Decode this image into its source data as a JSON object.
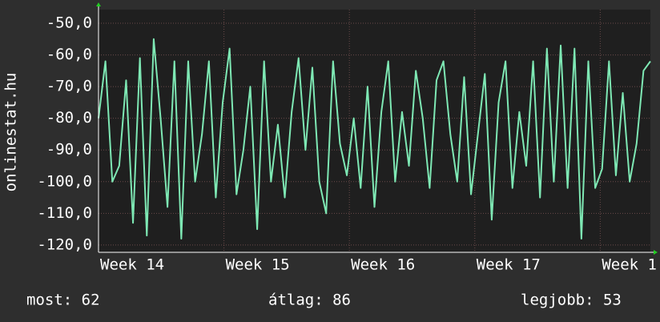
{
  "chart_data": {
    "type": "line",
    "y_label": "onlinestat.hu",
    "series": [
      {
        "name": "onlinestat.hu",
        "color": "#7ee8b4",
        "x": [
          14,
          14.055,
          14.11,
          14.165,
          14.22,
          14.275,
          14.33,
          14.385,
          14.44,
          14.495,
          14.55,
          14.605,
          14.66,
          14.715,
          14.77,
          14.825,
          14.88,
          14.935,
          14.99,
          15.045,
          15.1,
          15.155,
          15.21,
          15.265,
          15.32,
          15.375,
          15.43,
          15.485,
          15.54,
          15.595,
          15.65,
          15.705,
          15.76,
          15.815,
          15.87,
          15.925,
          15.98,
          16.035,
          16.09,
          16.145,
          16.2,
          16.255,
          16.31,
          16.365,
          16.42,
          16.475,
          16.53,
          16.585,
          16.64,
          16.695,
          16.75,
          16.805,
          16.86,
          16.915,
          16.97,
          17.025,
          17.08,
          17.135,
          17.19,
          17.245,
          17.3,
          17.355,
          17.41,
          17.465,
          17.52,
          17.575,
          17.63,
          17.685,
          17.74,
          17.795,
          17.85,
          17.905,
          17.96,
          18.015,
          18.07,
          18.125,
          18.18,
          18.235,
          18.29,
          18.345,
          18.4
        ],
        "values": [
          -80,
          -62,
          -100,
          -95,
          -68,
          -113,
          -61,
          -117,
          -55,
          -80,
          -108,
          -62,
          -118,
          -62,
          -100,
          -85,
          -62,
          -105,
          -75,
          -58,
          -104,
          -90,
          -70,
          -115,
          -62,
          -100,
          -82,
          -105,
          -78,
          -61,
          -90,
          -64,
          -100,
          -110,
          -62,
          -88,
          -98,
          -80,
          -102,
          -70,
          -108,
          -78,
          -62,
          -100,
          -78,
          -95,
          -65,
          -80,
          -102,
          -68,
          -62,
          -85,
          -100,
          -67,
          -104,
          -85,
          -66,
          -112,
          -75,
          -62,
          -102,
          -78,
          -95,
          -62,
          -105,
          -58,
          -100,
          -57,
          -102,
          -58,
          -118,
          -62,
          -102,
          -96,
          -62,
          -98,
          -72,
          -100,
          -88,
          -65,
          -62
        ]
      }
    ],
    "xlim": [
      14,
      18.4
    ],
    "xticks": [
      {
        "value": 14,
        "label": "Week 14"
      },
      {
        "value": 15,
        "label": "Week 15"
      },
      {
        "value": 16,
        "label": "Week 16"
      },
      {
        "value": 17,
        "label": "Week 17"
      },
      {
        "value": 18,
        "label": "Week 1"
      }
    ],
    "ylim": [
      -122.3,
      -45.7
    ],
    "yticks": [
      {
        "value": -120,
        "label": "-120,0"
      },
      {
        "value": -110,
        "label": "-110,0"
      },
      {
        "value": -100,
        "label": "-100,0"
      },
      {
        "value": -90,
        "label": "-90,0"
      },
      {
        "value": -80,
        "label": "-80,0"
      },
      {
        "value": -70,
        "label": "-70,0"
      },
      {
        "value": -60,
        "label": "-60,0"
      },
      {
        "value": -50,
        "label": "-50,0"
      }
    ],
    "grid": true,
    "footer": [
      "most: 62",
      "átlag: 86",
      "legjobb: 53"
    ]
  }
}
